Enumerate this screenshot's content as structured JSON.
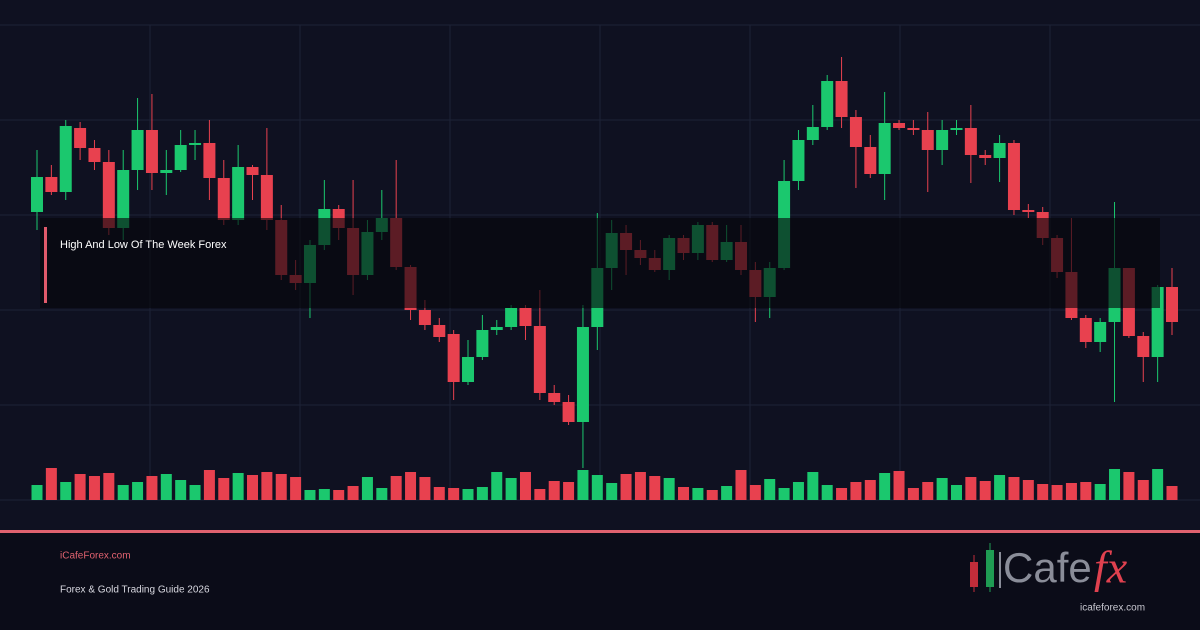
{
  "chart_data": {
    "type": "candlestick",
    "annotation": "High And Low Of The Week Forex",
    "up_color": "#1bc86e",
    "down_color": "#e8414f",
    "ylim": [
      0,
      475
    ],
    "yticks": [
      0,
      95,
      190,
      285,
      380,
      475
    ],
    "grid": true,
    "volume_ylim": [
      0,
      40
    ],
    "open": [
      288,
      323,
      308,
      372,
      352,
      338,
      272,
      330,
      370,
      327,
      330,
      355,
      357,
      322,
      280,
      333,
      325,
      280,
      225,
      217,
      255,
      291,
      272,
      225,
      268,
      282,
      233,
      190,
      175,
      166,
      118,
      143,
      170,
      173,
      192,
      174,
      107,
      98,
      78,
      173,
      232,
      267,
      250,
      242,
      230,
      262,
      247,
      275,
      240,
      258,
      230,
      203,
      232,
      319,
      360,
      373,
      419,
      383,
      353,
      326,
      377,
      372,
      370,
      350,
      370,
      372,
      345,
      342,
      357,
      290,
      288,
      262,
      228,
      182,
      158,
      178,
      232,
      164,
      143,
      213
    ],
    "high": [
      350,
      335,
      380,
      378,
      360,
      350,
      350,
      402,
      406,
      350,
      370,
      370,
      380,
      340,
      355,
      335,
      372,
      295,
      240,
      260,
      320,
      295,
      320,
      280,
      310,
      340,
      235,
      200,
      182,
      170,
      160,
      185,
      180,
      195,
      195,
      210,
      115,
      105,
      195,
      287,
      280,
      275,
      260,
      250,
      265,
      265,
      278,
      278,
      275,
      275,
      238,
      238,
      340,
      370,
      395,
      425,
      443,
      390,
      365,
      408,
      380,
      380,
      388,
      380,
      380,
      395,
      350,
      365,
      360,
      296,
      293,
      265,
      282,
      185,
      182,
      298,
      232,
      168,
      215,
      232
    ],
    "low": [
      270,
      305,
      300,
      340,
      330,
      265,
      260,
      310,
      310,
      305,
      328,
      340,
      300,
      275,
      275,
      300,
      270,
      220,
      210,
      182,
      250,
      260,
      205,
      220,
      260,
      230,
      180,
      170,
      158,
      100,
      115,
      140,
      165,
      170,
      160,
      100,
      95,
      75,
      32,
      150,
      210,
      225,
      235,
      228,
      220,
      240,
      240,
      238,
      238,
      225,
      178,
      182,
      230,
      310,
      355,
      370,
      372,
      312,
      322,
      300,
      370,
      365,
      308,
      335,
      365,
      317,
      335,
      318,
      285,
      282,
      255,
      222,
      180,
      152,
      148,
      98,
      162,
      118,
      118,
      165
    ],
    "close": [
      323,
      308,
      374,
      352,
      338,
      272,
      330,
      370,
      327,
      330,
      355,
      357,
      322,
      280,
      333,
      325,
      280,
      225,
      217,
      255,
      291,
      272,
      225,
      268,
      282,
      233,
      190,
      175,
      163,
      118,
      143,
      170,
      173,
      192,
      174,
      107,
      98,
      78,
      173,
      232,
      267,
      250,
      242,
      230,
      262,
      247,
      275,
      240,
      258,
      230,
      203,
      232,
      319,
      360,
      373,
      419,
      383,
      353,
      326,
      377,
      372,
      370,
      350,
      370,
      372,
      345,
      342,
      357,
      290,
      288,
      262,
      228,
      182,
      158,
      178,
      232,
      164,
      143,
      213,
      178
    ],
    "volume": [
      15,
      32,
      18,
      26,
      24,
      27,
      15,
      18,
      24,
      26,
      20,
      15,
      30,
      22,
      27,
      25,
      28,
      26,
      23,
      10,
      11,
      10,
      14,
      23,
      12,
      24,
      28,
      23,
      13,
      12,
      11,
      13,
      28,
      22,
      28,
      11,
      19,
      18,
      30,
      25,
      17,
      26,
      28,
      24,
      22,
      13,
      12,
      10,
      14,
      30,
      15,
      21,
      12,
      18,
      28,
      15,
      12,
      18,
      20,
      27,
      29,
      12,
      18,
      22,
      15,
      23,
      19,
      25,
      23,
      20,
      16,
      15,
      17,
      18,
      16,
      31,
      28,
      20,
      31,
      14
    ]
  },
  "footer": {
    "site": "iCafeForex.com",
    "subtitle": "Forex & Gold Trading Guide 2026"
  },
  "logo": {
    "name": "Cafe",
    "mark": "fx",
    "url": "icafeforex.com"
  }
}
